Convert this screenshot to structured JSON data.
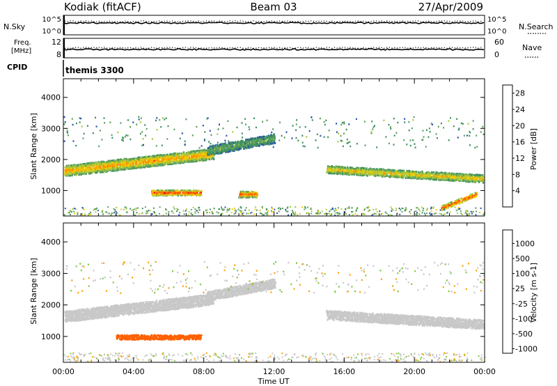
{
  "header": {
    "station": "Kodiak (fitACF)",
    "beam": "Beam 03",
    "date": "27/Apr/2009"
  },
  "top_panels": {
    "nsky": {
      "left_label": "N.Sky",
      "right_label": "N.Search",
      "left_ticks": [
        "10^5",
        "10^0"
      ],
      "right_ticks": [
        "10^5",
        "10^0"
      ]
    },
    "freq": {
      "left_label_line1": "Freq.",
      "left_label_line2": "[MHz]",
      "right_label": "Nave",
      "left_ticks": [
        "12",
        "8"
      ],
      "right_ticks": [
        "60",
        "0"
      ]
    },
    "cpid": {
      "label": "CPID",
      "mode": "themis 3300"
    }
  },
  "colors": {
    "power": [
      "#0000ff",
      "#2a4fb0",
      "#3d8f5e",
      "#5aa060",
      "#a8c83c",
      "#f0c800",
      "#ff8c00",
      "#ff4000",
      "#ff0000"
    ],
    "velocity": [
      "#ff0000",
      "#ff6000",
      "#ffa000",
      "#c8c8c8",
      "#c8c8c8",
      "#80c840",
      "#3d8f5e",
      "#2a4fb0",
      "#1020c0"
    ],
    "velocity_gray": "#c8c8c8"
  },
  "chart_data": [
    {
      "type": "heatmap",
      "panel": "power",
      "x": [
        "00:00",
        "04:00",
        "08:00",
        "12:00",
        "16:00",
        "20:00",
        "00:00"
      ],
      "xlabel": "Time UT",
      "ylabel": "Slant Range [km]",
      "yticks": [
        1000,
        2000,
        3000,
        4000
      ],
      "ylim": [
        180,
        4600
      ],
      "colorbar": {
        "label": "Power [dB]",
        "ticks": [
          "4",
          "8",
          "12",
          "16",
          "20",
          "24",
          "28"
        ],
        "range": [
          0,
          30
        ]
      },
      "features": [
        {
          "from_h": 0,
          "to_h": 8.5,
          "range_start_km": 1650,
          "range_end_km": 2200,
          "width_km": 350,
          "value_db": 22
        },
        {
          "from_h": 5,
          "to_h": 7.8,
          "range_start_km": 950,
          "range_end_km": 950,
          "width_km": 180,
          "value_db": 28
        },
        {
          "from_h": 8.2,
          "to_h": 12,
          "range_start_km": 2300,
          "range_end_km": 2700,
          "width_km": 300,
          "value_db": 12
        },
        {
          "from_h": 10,
          "to_h": 11,
          "range_start_km": 900,
          "range_end_km": 900,
          "width_km": 200,
          "value_db": 26
        },
        {
          "from_h": 15,
          "to_h": 24,
          "range_start_km": 1700,
          "range_end_km": 1400,
          "width_km": 250,
          "value_db": 20
        },
        {
          "from_h": 21.5,
          "to_h": 23.5,
          "range_start_km": 450,
          "range_end_km": 900,
          "width_km": 150,
          "value_db": 28
        }
      ]
    },
    {
      "type": "heatmap",
      "panel": "velocity",
      "x": [
        "00:00",
        "04:00",
        "08:00",
        "12:00",
        "16:00",
        "20:00",
        "00:00"
      ],
      "xlabel": "Time UT",
      "ylabel": "Slant Range [km]",
      "yticks": [
        1000,
        2000,
        3000,
        4000
      ],
      "ylim": [
        180,
        4600
      ],
      "colorbar": {
        "label": "Velocity [m s-1]",
        "ticks": [
          "1000",
          "500",
          "100",
          "25",
          "-25",
          "-100",
          "-500",
          "-1000"
        ]
      },
      "features": [
        {
          "from_h": 0,
          "to_h": 8.5,
          "range_start_km": 1650,
          "range_end_km": 2200,
          "width_km": 350,
          "value_ms": 0
        },
        {
          "from_h": 3,
          "to_h": 7.8,
          "range_start_km": 1000,
          "range_end_km": 1000,
          "width_km": 150,
          "value_ms": -300
        },
        {
          "from_h": 8.2,
          "to_h": 12,
          "range_start_km": 2300,
          "range_end_km": 2700,
          "width_km": 300,
          "value_ms": 0
        },
        {
          "from_h": 15,
          "to_h": 24,
          "range_start_km": 1700,
          "range_end_km": 1400,
          "width_km": 300,
          "value_ms": 0
        }
      ]
    }
  ]
}
